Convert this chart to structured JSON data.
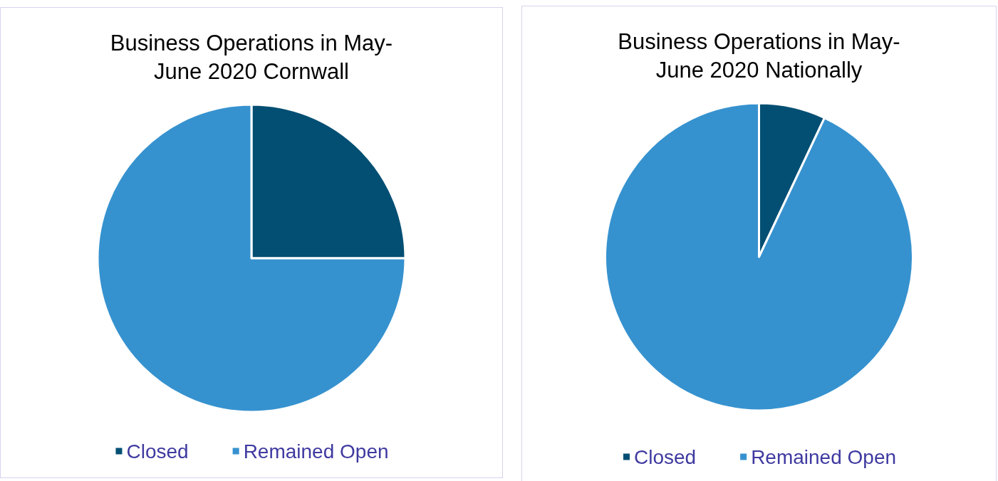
{
  "chart_data": [
    {
      "type": "pie",
      "title": "Business Operations in May-June 2020 Cornwall",
      "categories": [
        "Closed",
        "Remained Open"
      ],
      "values": [
        25,
        75
      ],
      "colors": [
        "#034f73",
        "#3692cf"
      ],
      "legend": "bottom"
    },
    {
      "type": "pie",
      "title": "Business Operations in May-June 2020 Nationally",
      "categories": [
        "Closed",
        "Remained Open"
      ],
      "values": [
        7,
        93
      ],
      "colors": [
        "#034f73",
        "#3692cf"
      ],
      "legend": "bottom"
    }
  ]
}
